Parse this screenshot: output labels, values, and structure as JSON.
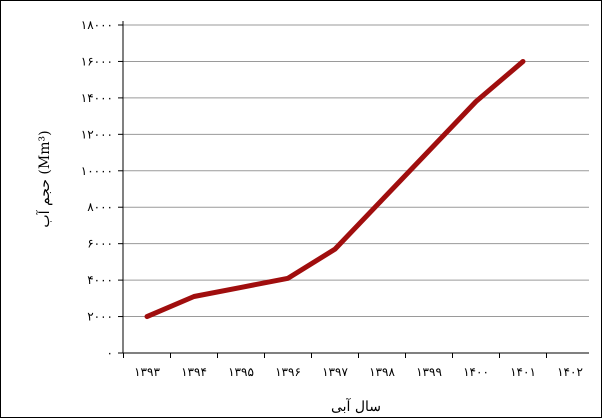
{
  "chart_data": {
    "type": "line",
    "x": [
      "۱۳۹۳",
      "۱۳۹۴",
      "۱۳۹۵",
      "۱۳۹۶",
      "۱۳۹۷",
      "۱۳۹۸",
      "۱۳۹۹",
      "۱۴۰۰",
      "۱۴۰۱",
      "۱۴۰۲"
    ],
    "series": [
      {
        "values": [
          2000,
          3100,
          3600,
          4100,
          5700,
          8400,
          11100,
          13800,
          16000,
          null
        ]
      }
    ],
    "xlabel": "سال آبی",
    "ylabel": "حجم آب (Mm³)",
    "ylim": [
      0,
      18000
    ],
    "yticks": [
      0,
      2000,
      4000,
      6000,
      8000,
      10000,
      12000,
      14000,
      16000,
      18000
    ],
    "yticklabels": [
      "۰",
      "۲۰۰۰",
      "۴۰۰۰",
      "۶۰۰۰",
      "۸۰۰۰",
      "۱۰۰۰۰",
      "۱۲۰۰۰",
      "۱۴۰۰۰",
      "۱۶۰۰۰",
      "۱۸۰۰۰"
    ],
    "grid": true,
    "line_color": "#A00E0E",
    "grid_color": "#9a9a9a"
  }
}
